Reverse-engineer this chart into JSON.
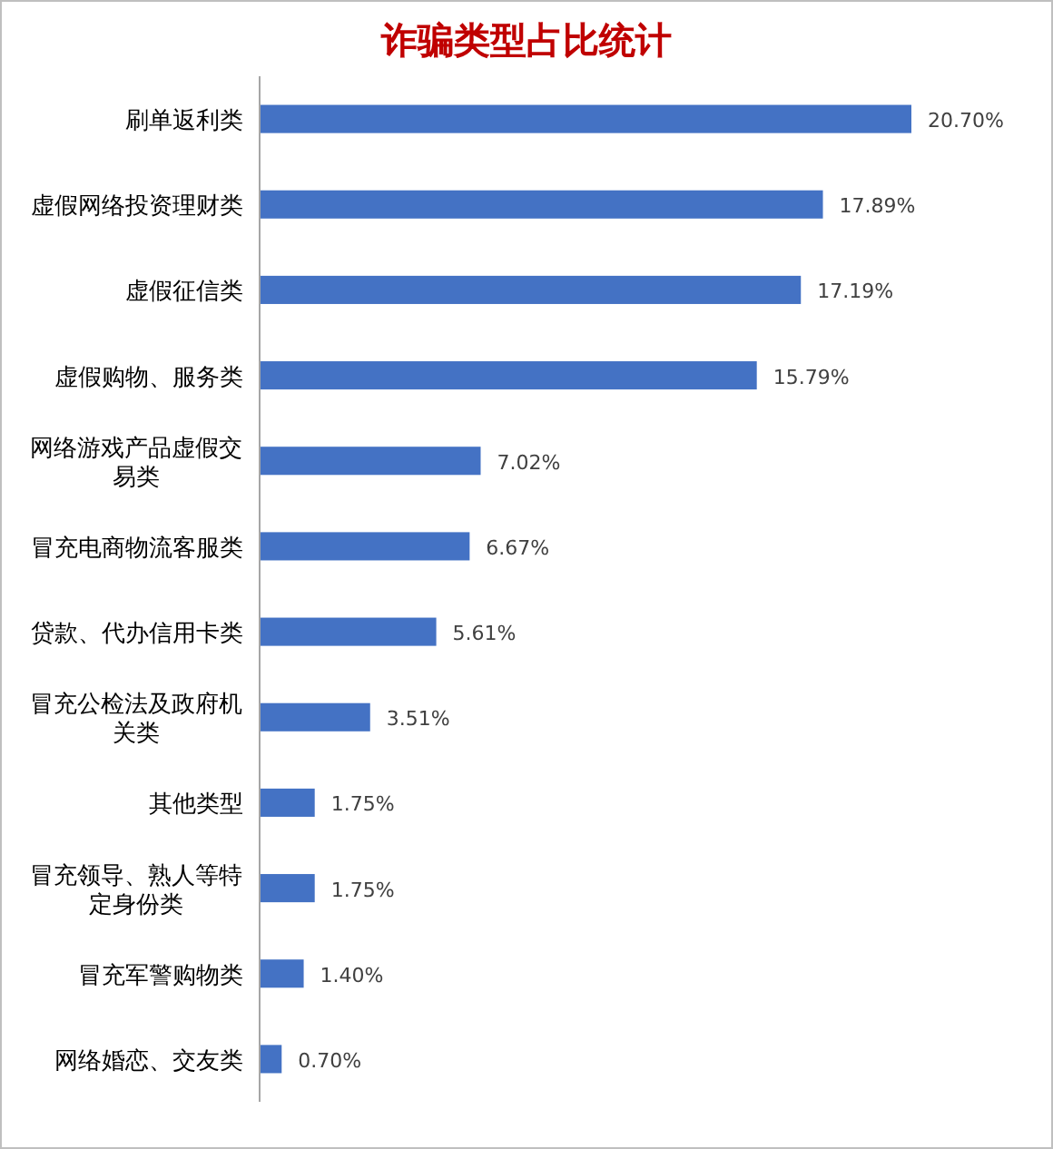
{
  "chart_data": {
    "type": "bar",
    "orientation": "horizontal",
    "title": "诈骗类型占比统计",
    "categories": [
      "刷单返利类",
      "虚假网络投资理财类",
      "虚假征信类",
      "虚假购物、服务类",
      "网络游戏产品虚假交易类",
      "冒充电商物流客服类",
      "贷款、代办信用卡类",
      "冒充公检法及政府机关类",
      "其他类型",
      "冒充领导、熟人等特定身份类",
      "冒充军警购物类",
      "网络婚恋、交友类"
    ],
    "values": [
      20.7,
      17.89,
      17.19,
      15.79,
      7.02,
      6.67,
      5.61,
      3.51,
      1.75,
      1.75,
      1.4,
      0.7
    ],
    "value_labels": [
      "20.70%",
      "17.89%",
      "17.19%",
      "15.79%",
      "7.02%",
      "6.67%",
      "5.61%",
      "3.51%",
      "1.75%",
      "1.75%",
      "1.40%",
      "0.70%"
    ],
    "color": "#4472c4"
  }
}
